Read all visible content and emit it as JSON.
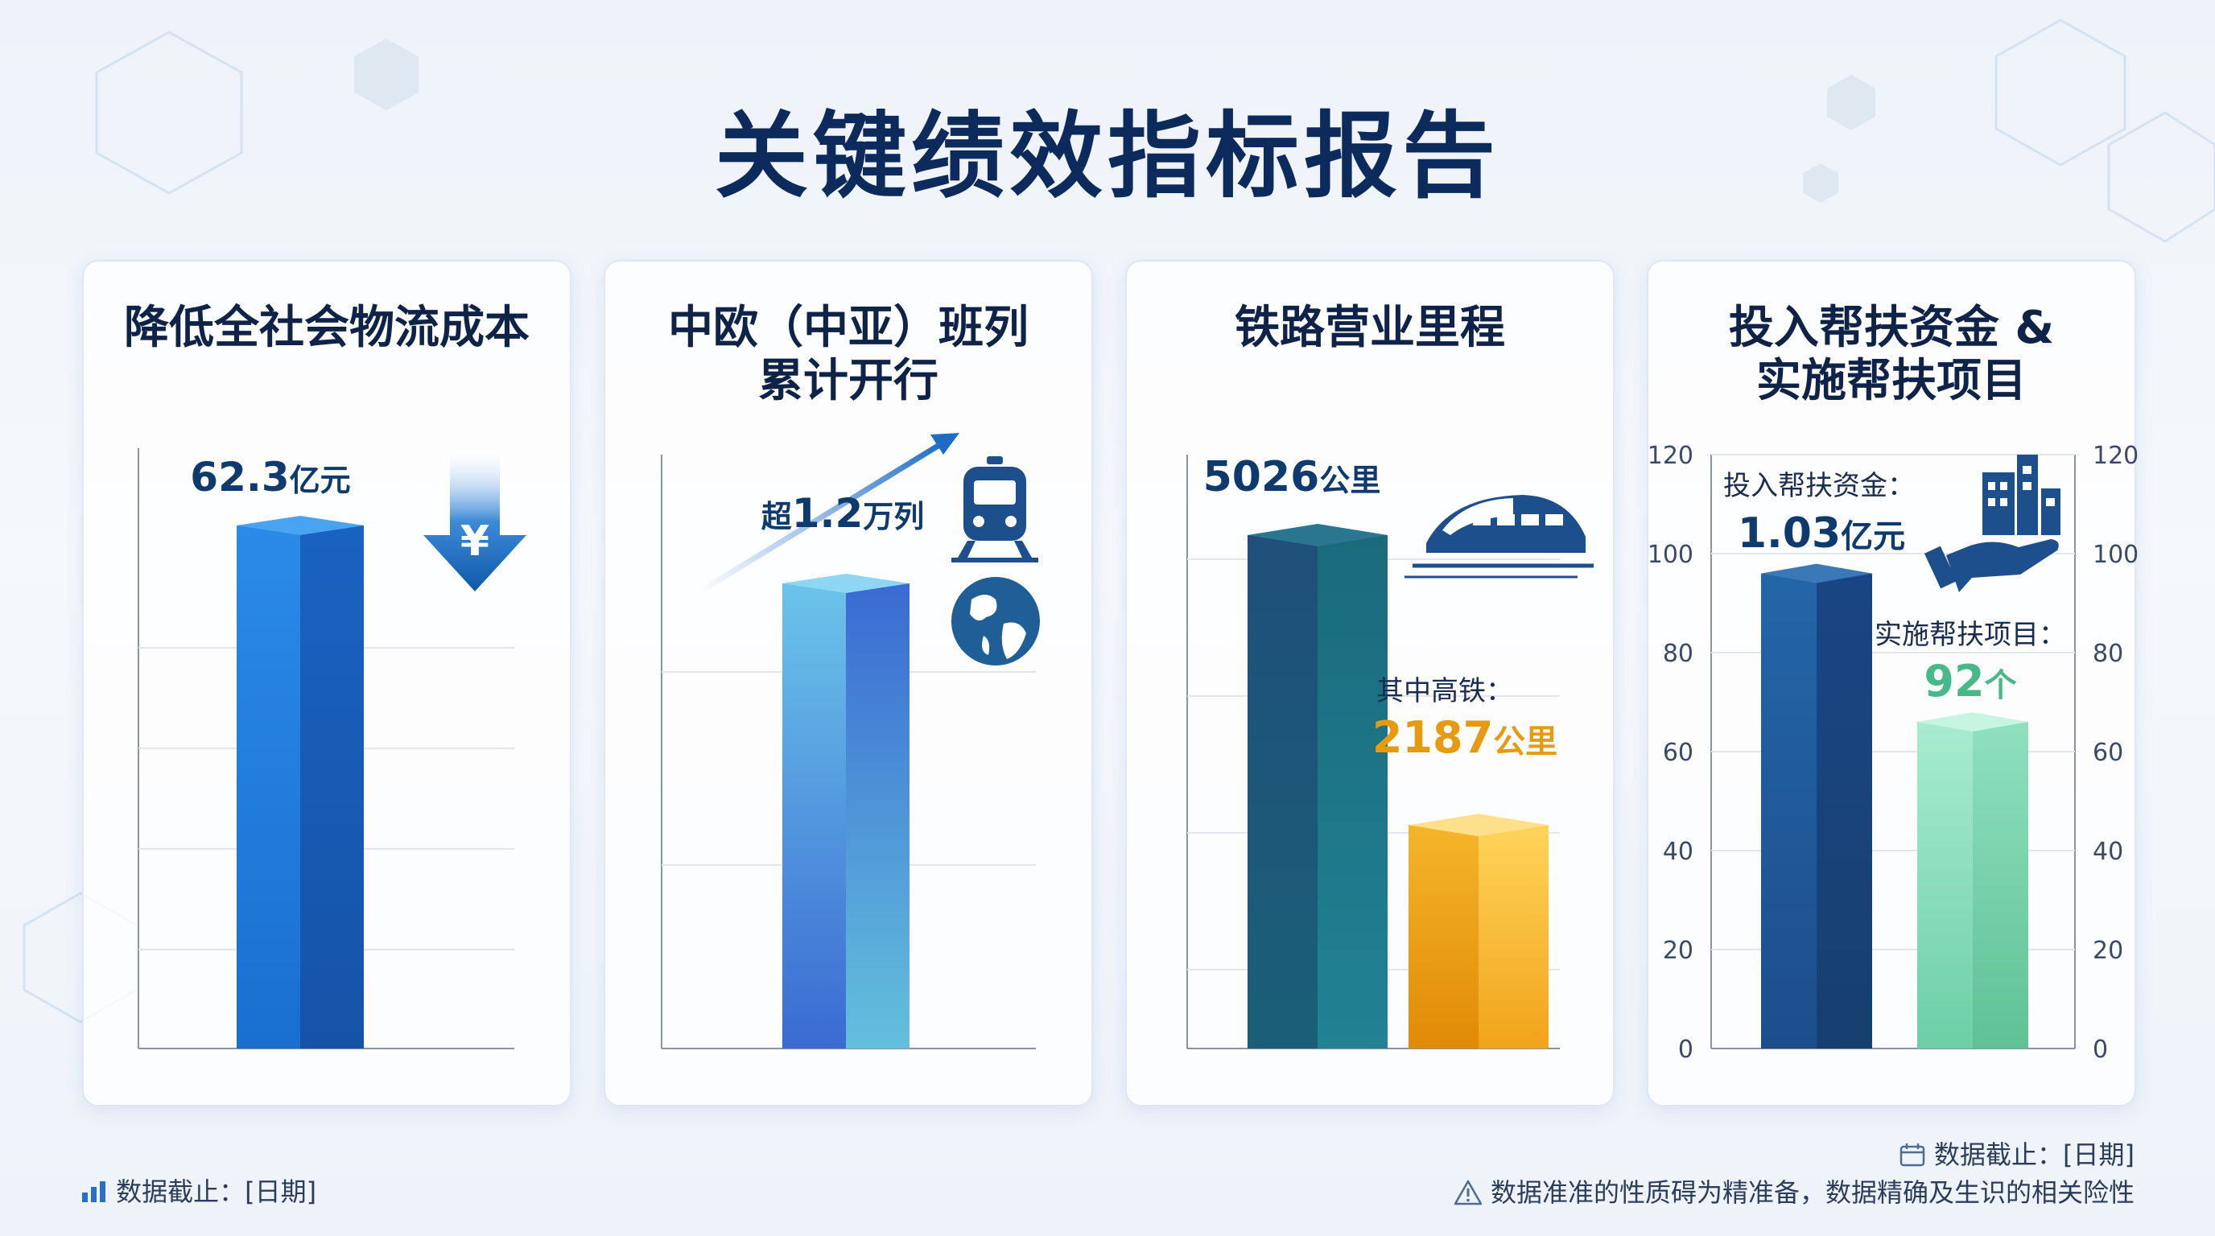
{
  "page": {
    "title": "关键绩效指标报告"
  },
  "colors": {
    "title": "#0d2a5c",
    "blue": "#1a72d6",
    "teal": "#1d6f86",
    "gold": "#f3a51b",
    "green": "#7fd9b2",
    "navy": "#1f4f8a"
  },
  "chart_data": [
    {
      "type": "bar",
      "title": "降低全社会物流成本",
      "categories": [
        ""
      ],
      "values": [
        62.3
      ],
      "unit": "亿元",
      "value_label": "62.3",
      "icons": [
        "yen-down-arrow-icon"
      ]
    },
    {
      "type": "bar",
      "title_lines": [
        "中欧（中亚）班列",
        "累计开行"
      ],
      "categories": [
        ""
      ],
      "values": [
        1.2
      ],
      "unit": "万列",
      "value_prefix": "超",
      "value_label": "1.2",
      "icons": [
        "trend-arrow-icon",
        "train-icon",
        "globe-icon"
      ]
    },
    {
      "type": "bar",
      "title": "铁路营业里程",
      "series": [
        {
          "value": 5026,
          "label": "5026",
          "unit": "公里"
        },
        {
          "value": 2187,
          "label": "2187",
          "unit": "公里",
          "caption": "其中高铁："
        }
      ],
      "icons": [
        "high-speed-train-icon"
      ]
    },
    {
      "type": "bar",
      "title_lines": [
        "投入帮扶资金 &",
        "实施帮扶项目"
      ],
      "ylim": [
        0,
        120
      ],
      "yticks": [
        0,
        20,
        40,
        60,
        80,
        100,
        120
      ],
      "series": [
        {
          "caption": "投入帮扶资金：",
          "value": 1.03,
          "label": "1.03",
          "unit": "亿元",
          "axis_reading": 96
        },
        {
          "caption": "实施帮扶项目：",
          "value": 92,
          "label": "92",
          "unit": "个",
          "axis_reading": 66
        }
      ],
      "icons": [
        "building-hand-icon"
      ]
    }
  ],
  "footer": {
    "left": "数据截止：[日期]",
    "right_date": "数据截止：[日期]",
    "disclaimer": "数据准准的性质碍为精准备，数据精确及生识的相关险性"
  }
}
